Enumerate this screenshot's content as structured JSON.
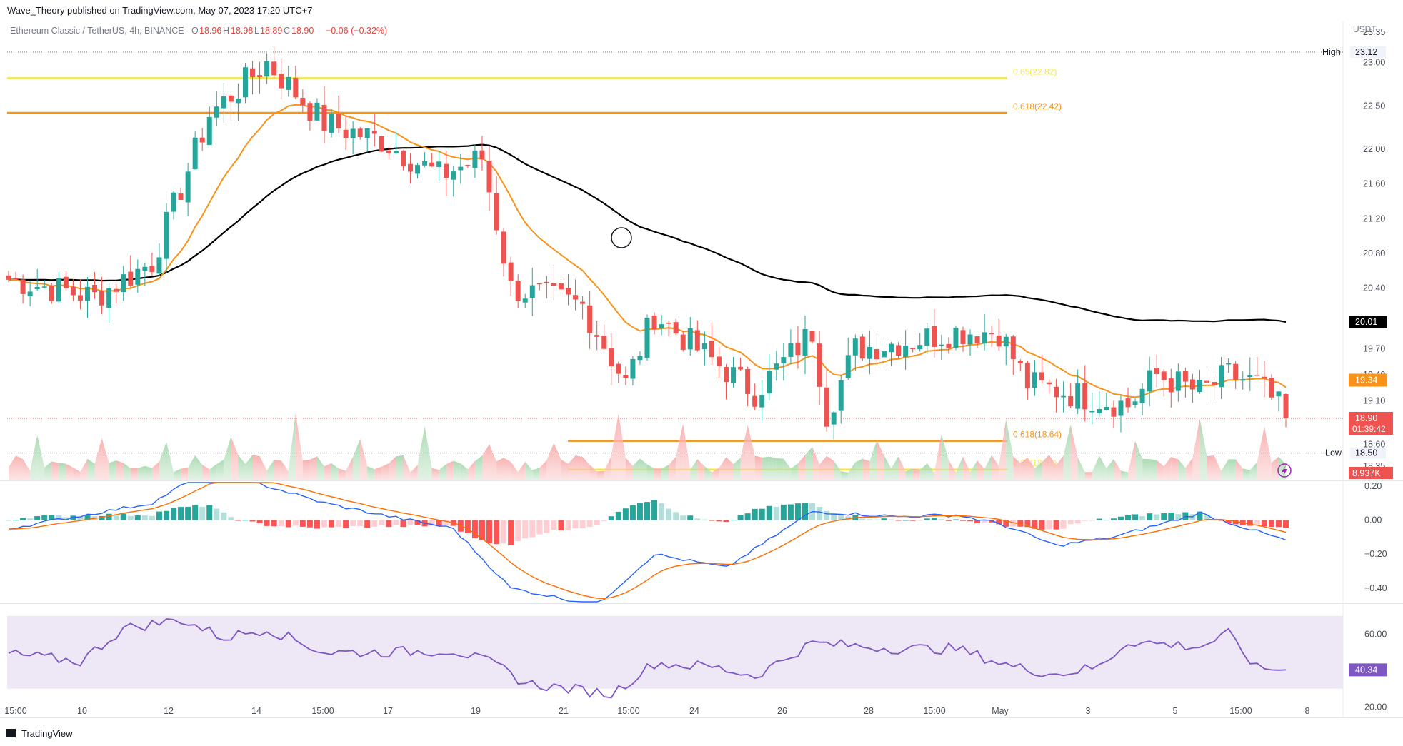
{
  "header": {
    "published": "Wave_Theory published on TradingView.com, May 07, 2023 17:20 UTC+7",
    "symbol": "Ethereum Classic / TetherUS, 4h, BINANCE",
    "o_label": "O",
    "o": "18.96",
    "h_label": "H",
    "h": "18.98",
    "l_label": "L",
    "l": "18.89",
    "c_label": "C",
    "c": "18.90",
    "change": "−0.06 (−0.32%)"
  },
  "footer": {
    "brand": "TradingView"
  },
  "colors": {
    "up": "#26a69a",
    "down": "#ef5350",
    "ema_fast": "#f7931a",
    "ema_slow": "#000000",
    "fib_yellow": "#f5e642",
    "fib_orange": "#f7931a",
    "macd_line": "#2962ff",
    "signal_line": "#ff6d00",
    "rsi_line": "#7e57c2",
    "rsi_band": "#ede7f6"
  },
  "chart_data": [
    {
      "type": "candlestick",
      "pane": "price",
      "currency": "USDT",
      "ylim": [
        18.25,
        23.35
      ],
      "y_ticks": [
        "23.35",
        "23.00",
        "22.50",
        "22.00",
        "21.60",
        "21.20",
        "20.80",
        "20.40",
        "20.00",
        "19.70",
        "19.40",
        "19.10",
        "18.60",
        "18.35"
      ],
      "x_tick_labels": [
        "15:00",
        "10",
        "12",
        "14",
        "15:00",
        "17",
        "19",
        "21",
        "15:00",
        "24",
        "26",
        "28",
        "15:00",
        "May",
        "3",
        "5",
        "15:00",
        "8"
      ],
      "high_label": "High",
      "high": "23.12",
      "low_label": "Low",
      "low": "18.50",
      "ema_fast_last": "19.34",
      "ema_slow_last": "20.01",
      "last_price": "18.90",
      "countdown": "01:39:42",
      "volume_last": "8.937K",
      "fib_levels": [
        {
          "label": "0.65(22.82)",
          "value": 22.82,
          "color": "yellow",
          "span": "upper"
        },
        {
          "label": "0.618(22.42)",
          "value": 22.42,
          "color": "orange",
          "span": "upper"
        },
        {
          "label": "0.618(18.64)",
          "value": 18.64,
          "color": "orange",
          "span": "lower"
        },
        {
          "label": "0.65(18.31)",
          "value": 18.31,
          "color": "yellow",
          "span": "lower"
        }
      ],
      "waypoints": [
        [
          0,
          20.5
        ],
        [
          12,
          20.3
        ],
        [
          20,
          20.7
        ],
        [
          28,
          22.4
        ],
        [
          36,
          23.0
        ],
        [
          44,
          22.3
        ],
        [
          52,
          22.1
        ],
        [
          60,
          21.7
        ],
        [
          66,
          21.9
        ],
        [
          70,
          20.4
        ],
        [
          80,
          20.2
        ],
        [
          86,
          19.3
        ],
        [
          90,
          20.1
        ],
        [
          96,
          19.7
        ],
        [
          104,
          19.2
        ],
        [
          112,
          19.9
        ],
        [
          114,
          18.95
        ],
        [
          118,
          19.7
        ],
        [
          126,
          19.8
        ],
        [
          132,
          19.9
        ],
        [
          138,
          19.9
        ],
        [
          142,
          19.3
        ],
        [
          150,
          19.15
        ],
        [
          156,
          19.05
        ],
        [
          160,
          19.4
        ],
        [
          166,
          19.2
        ],
        [
          170,
          19.4
        ],
        [
          174,
          19.3
        ],
        [
          178,
          18.95
        ]
      ]
    },
    {
      "type": "macd",
      "pane": "macd",
      "ylim": [
        -0.48,
        0.22
      ],
      "y_ticks": [
        "0.20",
        "0.00",
        "−0.20",
        "−0.40"
      ],
      "waypoints": [
        [
          0,
          -0.05
        ],
        [
          20,
          0.1
        ],
        [
          28,
          0.3
        ],
        [
          36,
          0.2
        ],
        [
          44,
          0.1
        ],
        [
          52,
          0.03
        ],
        [
          62,
          -0.05
        ],
        [
          70,
          -0.4
        ],
        [
          82,
          -0.5
        ],
        [
          90,
          -0.2
        ],
        [
          100,
          -0.28
        ],
        [
          112,
          0.05
        ],
        [
          124,
          0.02
        ],
        [
          132,
          0.03
        ],
        [
          138,
          -0.02
        ],
        [
          146,
          -0.15
        ],
        [
          154,
          -0.1
        ],
        [
          166,
          0.04
        ],
        [
          178,
          -0.12
        ]
      ]
    },
    {
      "type": "line",
      "pane": "rsi",
      "ylim": [
        15,
        75
      ],
      "band": [
        30,
        70
      ],
      "y_ticks": [
        "60.00",
        "40.00",
        "20.00"
      ],
      "rsi_last": "40.34",
      "waypoints": [
        [
          0,
          49
        ],
        [
          10,
          45
        ],
        [
          16,
          63
        ],
        [
          24,
          68
        ],
        [
          30,
          58
        ],
        [
          36,
          63
        ],
        [
          44,
          50
        ],
        [
          52,
          50
        ],
        [
          62,
          51
        ],
        [
          68,
          43
        ],
        [
          72,
          33
        ],
        [
          84,
          27
        ],
        [
          90,
          44
        ],
        [
          98,
          42
        ],
        [
          104,
          37
        ],
        [
          112,
          55
        ],
        [
          124,
          52
        ],
        [
          132,
          52
        ],
        [
          140,
          42
        ],
        [
          146,
          38
        ],
        [
          152,
          42
        ],
        [
          156,
          56
        ],
        [
          166,
          53
        ],
        [
          170,
          60
        ],
        [
          174,
          41
        ],
        [
          178,
          41
        ]
      ]
    }
  ]
}
